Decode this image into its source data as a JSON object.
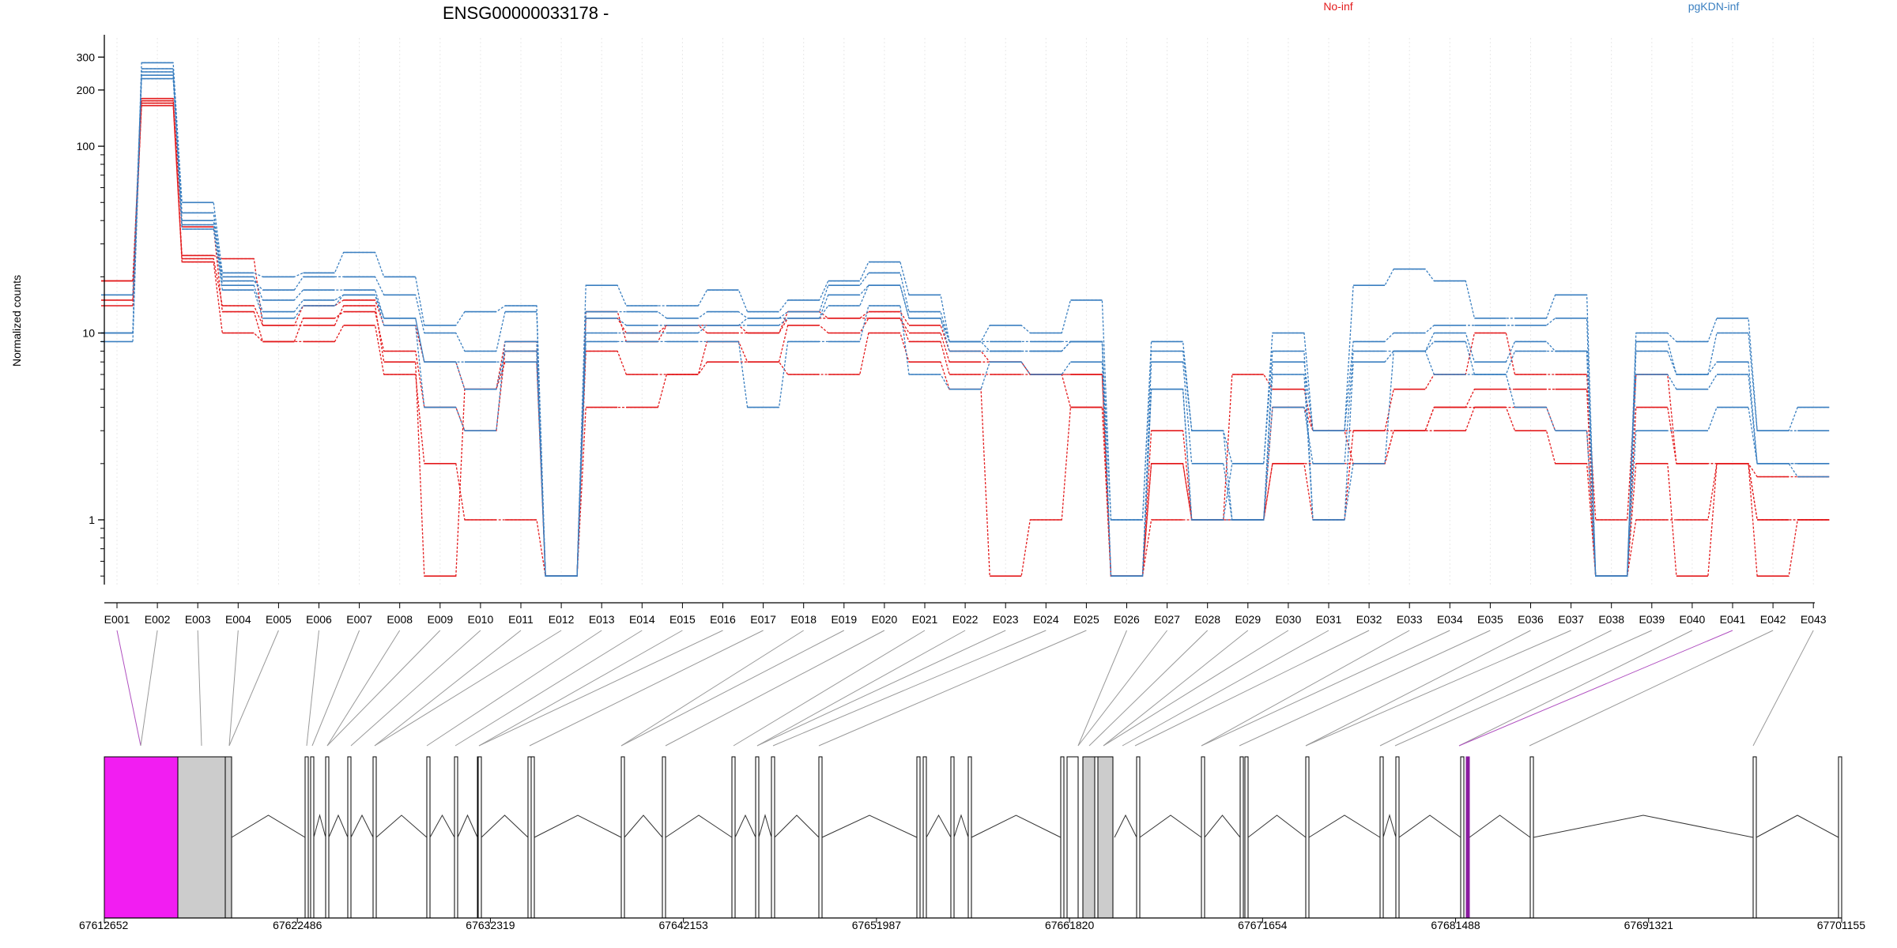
{
  "chart_data": {
    "type": "line",
    "title": "ENSG00000033178 -",
    "ylabel": "Normalized counts",
    "yscale": "log",
    "ylim": [
      0.45,
      380
    ],
    "yticks": [
      1,
      10,
      100,
      200,
      300
    ],
    "grid": "vertical",
    "legend": [
      {
        "name": "No-inf",
        "color": "#e31a1c"
      },
      {
        "name": "pgKDN-inf",
        "color": "#3a7fc0"
      }
    ],
    "categories": [
      "E001",
      "E002",
      "E003",
      "E004",
      "E005",
      "E006",
      "E007",
      "E008",
      "E009",
      "E010",
      "E011",
      "E012",
      "E013",
      "E014",
      "E015",
      "E016",
      "E017",
      "E018",
      "E019",
      "E020",
      "E021",
      "E022",
      "E023",
      "E024",
      "E025",
      "E026",
      "E027",
      "E028",
      "E029",
      "E030",
      "E031",
      "E032",
      "E033",
      "E034",
      "E035",
      "E036",
      "E037",
      "E038",
      "E039",
      "E040",
      "E041",
      "E042",
      "E043"
    ],
    "series": [
      {
        "group": "No-inf",
        "values": [
          19,
          180,
          26,
          25,
          11,
          14,
          15,
          11,
          7,
          5,
          9,
          0.5,
          13,
          9,
          11,
          11,
          10,
          13,
          12,
          13,
          11,
          8,
          7,
          6,
          6,
          0.5,
          3,
          1,
          6,
          5,
          3,
          3,
          5,
          6,
          10,
          6,
          6,
          1,
          6,
          2,
          2,
          1,
          1
        ]
      },
      {
        "group": "No-inf",
        "values": [
          15,
          175,
          37,
          13,
          9,
          12,
          13,
          8,
          4,
          3,
          8,
          0.5,
          8,
          6,
          6,
          9,
          7,
          11,
          10,
          12,
          9,
          6,
          6,
          6,
          4,
          0.5,
          2,
          1,
          1,
          4,
          3,
          2,
          3,
          4,
          5,
          5,
          5,
          0.5,
          4,
          2,
          2,
          1.7,
          1.7
        ]
      },
      {
        "group": "No-inf",
        "values": [
          14,
          170,
          24,
          10,
          9,
          9,
          11,
          6,
          2,
          1,
          1,
          0.5,
          4,
          4,
          6,
          7,
          7,
          6,
          6,
          10,
          7,
          5,
          0.5,
          1,
          4,
          0.5,
          1,
          1,
          1,
          2,
          2,
          2,
          3,
          3,
          4,
          3,
          2,
          0.5,
          1,
          1,
          2,
          0.5,
          1
        ]
      },
      {
        "group": "No-inf",
        "values": [
          19,
          165,
          25,
          14,
          11,
          11,
          14,
          7,
          0.5,
          5,
          7,
          0.5,
          12,
          10,
          11,
          10,
          10,
          12,
          12,
          12,
          10,
          7,
          7,
          6,
          6,
          0.5,
          2,
          1,
          1,
          2,
          1,
          3,
          3,
          4,
          4,
          4,
          3,
          0.5,
          2,
          0.5,
          2,
          1,
          1
        ]
      },
      {
        "group": "pgKDN-inf",
        "values": [
          10,
          280,
          50,
          21,
          20,
          21,
          27,
          20,
          11,
          13,
          14,
          0.5,
          18,
          14,
          14,
          17,
          13,
          15,
          19,
          24,
          16,
          9,
          11,
          10,
          15,
          1,
          9,
          3,
          2,
          10,
          3,
          18,
          22,
          19,
          12,
          12,
          16,
          0.5,
          10,
          9,
          12,
          3,
          4
        ]
      },
      {
        "group": "pgKDN-inf",
        "values": [
          10,
          260,
          44,
          19,
          17,
          20,
          20,
          16,
          10,
          8,
          13,
          0.5,
          13,
          13,
          12,
          13,
          12,
          13,
          18,
          21,
          13,
          9,
          9,
          9,
          9,
          1,
          8,
          3,
          1,
          7,
          3,
          9,
          10,
          11,
          11,
          11,
          12,
          0.5,
          9,
          6,
          10,
          3,
          3
        ]
      },
      {
        "group": "pgKDN-inf",
        "values": [
          16,
          240,
          38,
          20,
          15,
          17,
          17,
          12,
          7,
          7,
          7,
          0.5,
          12,
          11,
          11,
          11,
          11,
          12,
          14,
          18,
          12,
          8,
          8,
          8,
          9,
          0.5,
          5,
          1,
          1,
          4,
          2,
          8,
          8,
          10,
          7,
          9,
          8,
          0.5,
          8,
          6,
          7,
          2,
          1.7
        ]
      },
      {
        "group": "pgKDN-inf",
        "values": [
          9,
          230,
          40,
          18,
          13,
          15,
          16,
          12,
          7,
          5,
          8,
          0.5,
          10,
          10,
          10,
          11,
          12,
          12,
          16,
          18,
          12,
          9,
          8,
          8,
          9,
          0.5,
          7,
          2,
          1,
          6,
          1,
          7,
          8,
          9,
          6,
          8,
          8,
          0.5,
          6,
          5,
          6,
          2,
          2
        ]
      },
      {
        "group": "pgKDN-inf",
        "values": [
          10,
          250,
          36,
          17,
          12,
          14,
          16,
          11,
          4,
          3,
          9,
          0.5,
          9,
          9,
          9,
          9,
          4,
          9,
          9,
          14,
          6,
          5,
          7,
          6,
          7,
          0.5,
          5,
          1,
          2,
          8,
          1,
          2,
          8,
          6,
          6,
          4,
          3,
          0.5,
          3,
          3,
          4,
          2,
          2
        ]
      }
    ],
    "gene_model": {
      "coordinate_ticks": [
        "67612652",
        "67622486",
        "67632319",
        "67642153",
        "67651987",
        "67661820",
        "67671654",
        "67681488",
        "67691321",
        "67701155"
      ]
    }
  }
}
